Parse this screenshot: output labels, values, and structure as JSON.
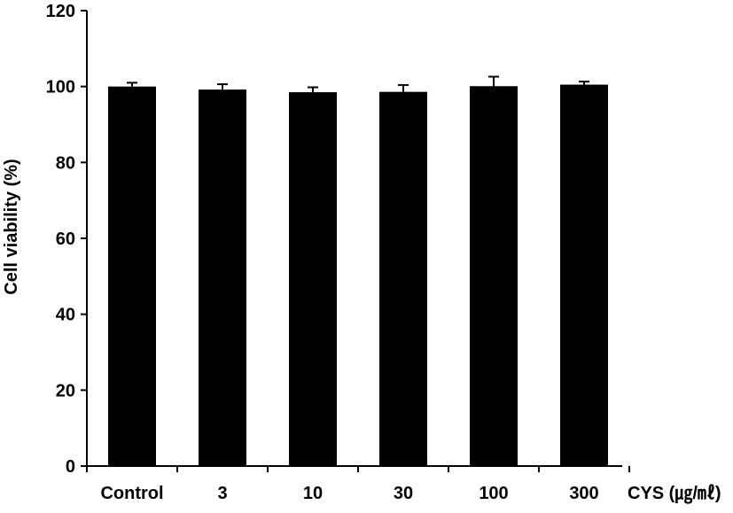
{
  "chart_data": {
    "type": "bar",
    "categories": [
      "Control",
      "3",
      "10",
      "30",
      "100",
      "300"
    ],
    "values": [
      100,
      99.2,
      98.5,
      98.6,
      100.1,
      100.5
    ],
    "errors": [
      1.0,
      1.4,
      1.3,
      1.8,
      2.5,
      0.8
    ],
    "ylabel": "Cell viability (%)",
    "xlabel": "CYS (㎍/㎖)",
    "ylim": [
      0,
      120
    ],
    "yticks": [
      0,
      20,
      40,
      60,
      80,
      100,
      120
    ],
    "grid": false,
    "bar_color": "#000000",
    "error_bar_color": "#000000",
    "axis_color": "#000000"
  }
}
